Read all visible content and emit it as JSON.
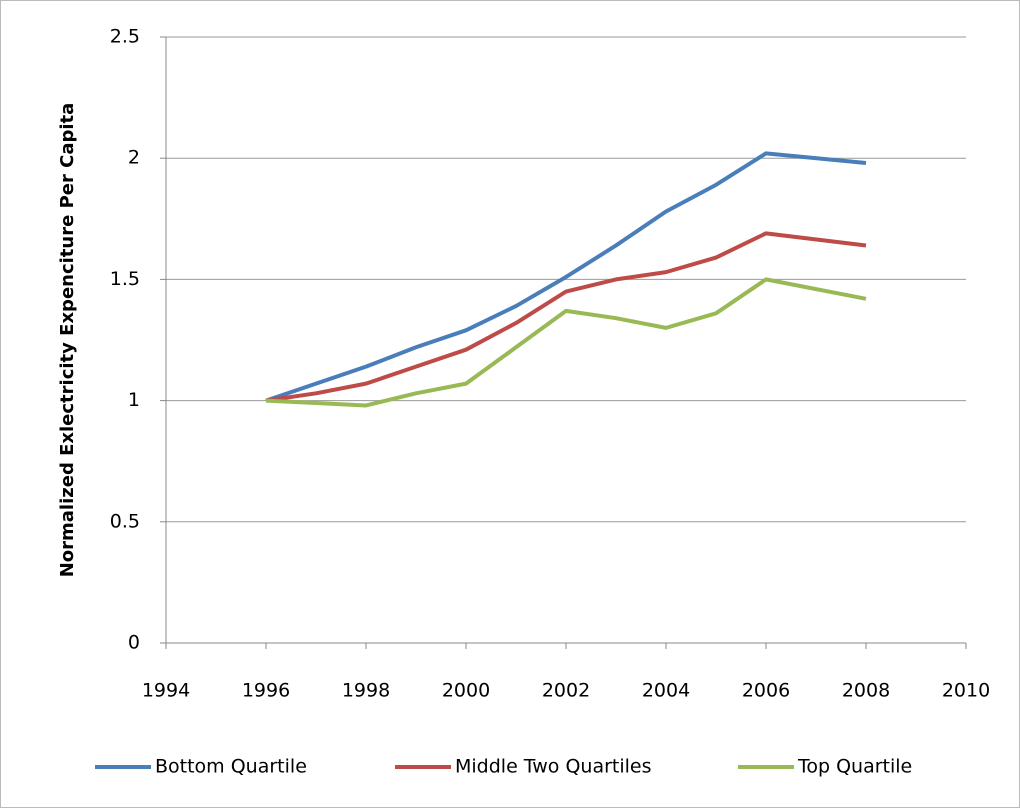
{
  "chart_data": {
    "type": "line",
    "y_label": "Normalized Exlectricity Expenciture Per Capita",
    "x": [
      1996,
      1997,
      1998,
      1999,
      2000,
      2001,
      2002,
      2003,
      2004,
      2005,
      2006,
      2008
    ],
    "series": [
      {
        "name": "Bottom Quartile",
        "color": "#4a7ebb",
        "values": [
          1.0,
          1.07,
          1.14,
          1.22,
          1.29,
          1.39,
          1.51,
          1.64,
          1.78,
          1.89,
          2.02,
          1.98
        ]
      },
      {
        "name": "Middle Two Quartiles",
        "color": "#be4b48",
        "values": [
          1.0,
          1.03,
          1.07,
          1.14,
          1.21,
          1.32,
          1.45,
          1.5,
          1.53,
          1.59,
          1.69,
          1.64
        ]
      },
      {
        "name": "Top Quartile",
        "color": "#98b954",
        "values": [
          1.0,
          0.99,
          0.98,
          1.03,
          1.07,
          1.22,
          1.37,
          1.34,
          1.3,
          1.36,
          1.5,
          1.42
        ]
      }
    ],
    "xlim": [
      1994,
      2010
    ],
    "xticks": [
      1994,
      1996,
      1998,
      2000,
      2002,
      2004,
      2006,
      2008,
      2010
    ],
    "ylim": [
      0,
      2.5
    ],
    "yticks": [
      0,
      0.5,
      1,
      1.5,
      2,
      2.5
    ],
    "grid": true,
    "legend": "bottom"
  }
}
